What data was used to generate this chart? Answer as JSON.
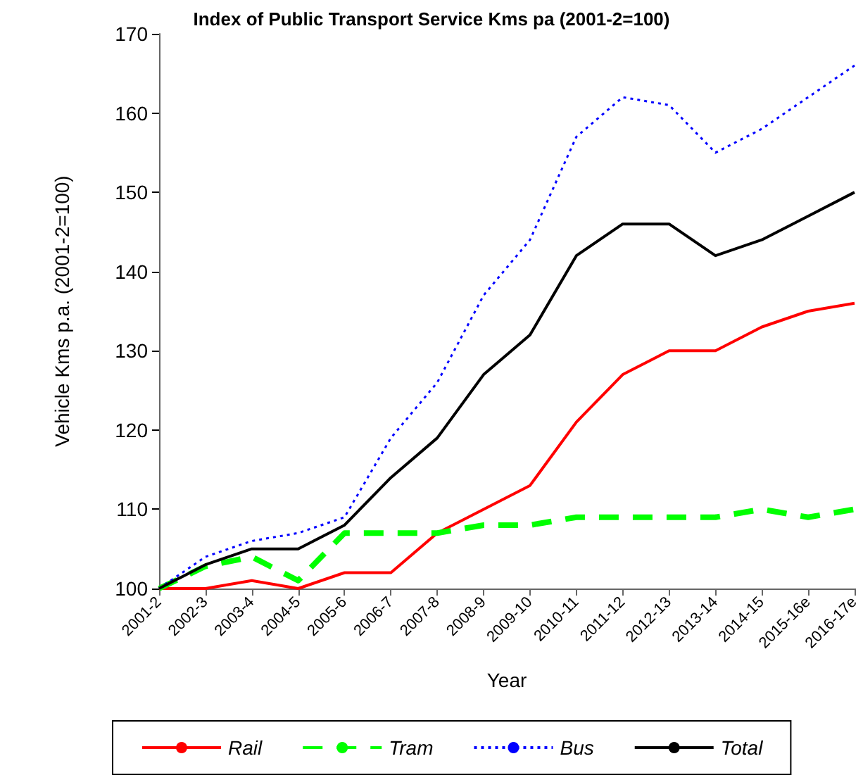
{
  "chart_data": {
    "type": "line",
    "title": "Index of Public Transport Service Kms pa (2001-2=100)",
    "xlabel": "Year",
    "ylabel": "Vehicle Kms p.a. (2001-2=100)",
    "categories": [
      "2001-2",
      "2002-3",
      "2003-4",
      "2004-5",
      "2005-6",
      "2006-7",
      "2007-8",
      "2008-9",
      "2009-10",
      "2010-11",
      "2011-12",
      "2012-13",
      "2013-14",
      "2014-15",
      "2015-16e",
      "2016-17e"
    ],
    "series": [
      {
        "name": "Rail",
        "color": "#ff0000",
        "line_style": "solid",
        "values": [
          100,
          100,
          101,
          100,
          102,
          102,
          107,
          110,
          113,
          121,
          127,
          130,
          130,
          133,
          135,
          136
        ]
      },
      {
        "name": "Tram",
        "color": "#00ff00",
        "line_style": "dashed",
        "values": [
          100,
          102.8,
          104,
          101,
          107,
          107,
          107,
          108,
          108,
          109,
          109,
          109,
          109,
          110,
          109,
          110
        ]
      },
      {
        "name": "Bus",
        "color": "#0000ff",
        "line_style": "dotted",
        "values": [
          100,
          104,
          106,
          107,
          109,
          119,
          126,
          137,
          144,
          157,
          162,
          161,
          155,
          158,
          162,
          166
        ]
      },
      {
        "name": "Total",
        "color": "#000000",
        "line_style": "solid",
        "values": [
          100,
          103,
          105,
          105,
          108,
          114,
          119,
          127,
          132,
          142,
          146,
          146,
          142,
          144,
          147,
          150
        ]
      }
    ],
    "ylim": [
      100,
      170
    ],
    "yticks": [
      100,
      110,
      120,
      130,
      140,
      150,
      160,
      170
    ],
    "grid": false,
    "legend": "bottom",
    "marker": "none"
  }
}
